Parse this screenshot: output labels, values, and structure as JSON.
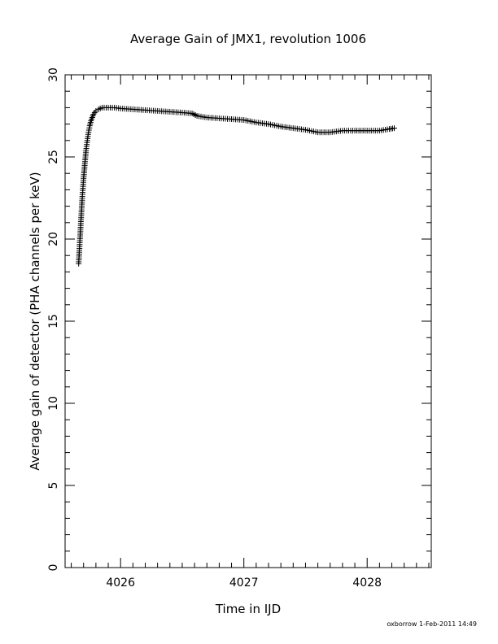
{
  "chart_data": {
    "type": "scatter",
    "title": "Average Gain of JMX1, revolution 1006",
    "xlabel": "Time in IJD",
    "ylabel": "Average gain of detector (PHA channels per keV)",
    "xlim": [
      4025.55,
      4028.52
    ],
    "ylim": [
      0,
      30
    ],
    "x_ticks": [
      4026,
      4027,
      4028
    ],
    "y_ticks": [
      0,
      5,
      10,
      15,
      20,
      25,
      30
    ],
    "x_tick_labels": [
      "4026",
      "4027",
      "4028"
    ],
    "y_tick_labels": [
      "0",
      "5",
      "10",
      "15",
      "20",
      "25",
      "30"
    ],
    "grid": false,
    "marker": "plus",
    "marker_color": "#000000",
    "series": [
      {
        "x": [
          4025.66,
          4025.67,
          4025.68,
          4025.69,
          4025.7,
          4025.71,
          4025.72,
          4025.73,
          4025.74,
          4025.75,
          4025.76,
          4025.77,
          4025.78,
          4025.8,
          4025.82,
          4025.85,
          4025.9,
          4025.95,
          4026.0,
          4026.1,
          4026.2,
          4026.3,
          4026.4,
          4026.5,
          4026.58,
          4026.62,
          4026.7,
          4026.8,
          4026.9,
          4027.0,
          4027.1,
          4027.2,
          4027.3,
          4027.4,
          4027.5,
          4027.6,
          4027.7,
          4027.8,
          4027.9,
          4028.0,
          4028.1,
          4028.18,
          4028.22
        ],
        "y": [
          18.5,
          19.9,
          21.3,
          22.6,
          23.7,
          24.6,
          25.4,
          26.0,
          26.5,
          26.9,
          27.2,
          27.4,
          27.6,
          27.8,
          27.9,
          28.0,
          28.0,
          28.0,
          27.95,
          27.9,
          27.85,
          27.8,
          27.75,
          27.7,
          27.65,
          27.5,
          27.4,
          27.35,
          27.3,
          27.25,
          27.1,
          27.0,
          26.85,
          26.75,
          26.65,
          26.5,
          26.5,
          26.6,
          26.6,
          26.6,
          26.6,
          26.7,
          26.75
        ]
      }
    ]
  },
  "footer": {
    "credit": "oxborrow  1-Feb-2011 14:49"
  }
}
